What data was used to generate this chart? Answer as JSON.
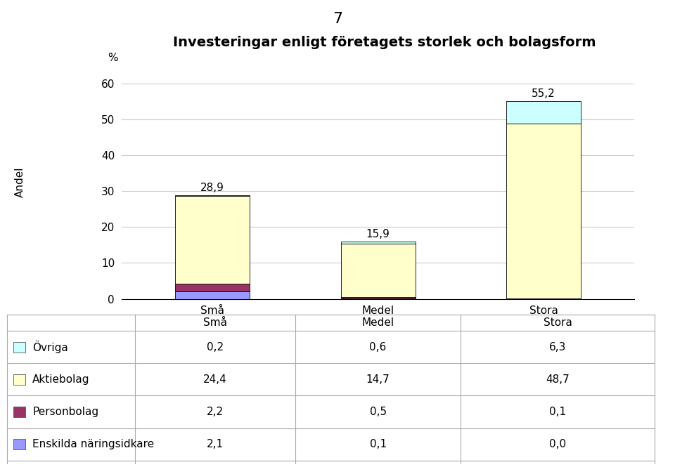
{
  "title": "Investeringar enligt företagets storlek och bolagsform",
  "page_number": "7",
  "ylabel": "Andel",
  "pct_label": "%",
  "categories": [
    "Små",
    "Medel",
    "Stora"
  ],
  "series": [
    {
      "name": "Enskilda näringsidkare",
      "color": "#9999FF",
      "values": [
        2.1,
        0.1,
        0.0
      ]
    },
    {
      "name": "Personbolag",
      "color": "#993366",
      "values": [
        2.2,
        0.5,
        0.1
      ]
    },
    {
      "name": "Aktiebolag",
      "color": "#FFFFCC",
      "values": [
        24.4,
        14.7,
        48.7
      ]
    },
    {
      "name": "Övriga",
      "color": "#CCFFFF",
      "values": [
        0.2,
        0.6,
        6.3
      ]
    }
  ],
  "bar_totals": [
    "28,9",
    "15,9",
    "55,2"
  ],
  "ylim": [
    0,
    65
  ],
  "yticks": [
    0,
    10,
    20,
    30,
    40,
    50,
    60
  ],
  "bar_width": 0.45,
  "legend_rows": [
    {
      "name": "Övriga",
      "color": "#CCFFFF",
      "values": [
        "0,2",
        "0,6",
        "6,3"
      ]
    },
    {
      "name": "Aktiebolag",
      "color": "#FFFFCC",
      "values": [
        "24,4",
        "14,7",
        "48,7"
      ]
    },
    {
      "name": "Personbolag",
      "color": "#993366",
      "values": [
        "2,2",
        "0,5",
        "0,1"
      ]
    },
    {
      "name": "Enskilda näringsidkare",
      "color": "#9999FF",
      "values": [
        "2,1",
        "0,1",
        "0,0"
      ]
    }
  ],
  "grid_color": "#CCCCCC",
  "table_line_color": "#AAAAAA",
  "font_size": 11,
  "title_font_size": 14
}
